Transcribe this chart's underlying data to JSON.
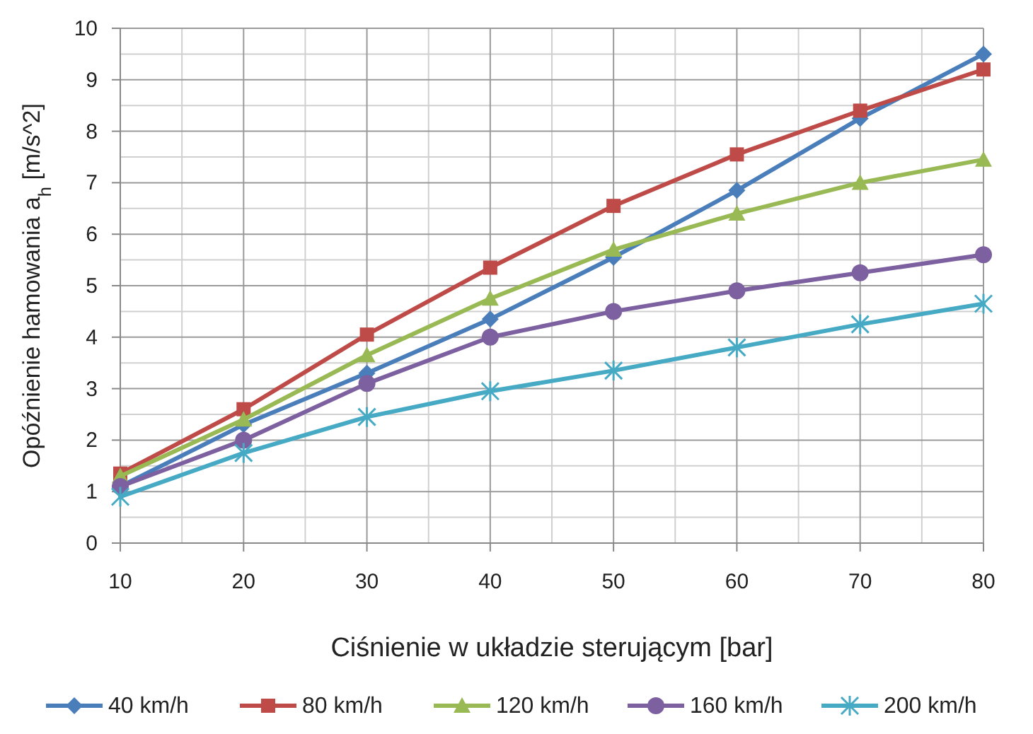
{
  "chart_data": {
    "type": "line",
    "xlabel": "Ciśnienie w układzie sterującym [bar]",
    "ylabel": "Opóźnienie hamowania a$_{h}$  [m/s^2]",
    "x": [
      10,
      20,
      30,
      40,
      50,
      60,
      70,
      80
    ],
    "xlim": [
      10,
      80
    ],
    "xticks": [
      10,
      20,
      30,
      40,
      50,
      60,
      70,
      80
    ],
    "ylim": [
      0,
      10
    ],
    "yticks": [
      0,
      1,
      2,
      3,
      4,
      5,
      6,
      7,
      8,
      9,
      10
    ],
    "grid": true,
    "legend": "bottom",
    "line_style": "solid",
    "series": [
      {
        "name": "40 km/h",
        "color": "#4a7ebb",
        "marker": "diamond",
        "values": [
          1.1,
          2.3,
          3.3,
          4.35,
          5.55,
          6.85,
          8.25,
          9.5
        ]
      },
      {
        "name": "80 km/h",
        "color": "#be4b48",
        "marker": "square",
        "values": [
          1.35,
          2.6,
          4.05,
          5.35,
          6.55,
          7.55,
          8.4,
          9.2
        ]
      },
      {
        "name": "120 km/h",
        "color": "#98b954",
        "marker": "triangle",
        "values": [
          1.3,
          2.4,
          3.65,
          4.75,
          5.7,
          6.4,
          7.0,
          7.45
        ]
      },
      {
        "name": "160 km/h",
        "color": "#7d60a0",
        "marker": "circle",
        "values": [
          1.1,
          2.0,
          3.1,
          4.0,
          4.5,
          4.9,
          5.25,
          5.6
        ]
      },
      {
        "name": "200 km/h",
        "color": "#46aac5",
        "marker": "cross",
        "values": [
          0.9,
          1.75,
          2.45,
          2.95,
          3.35,
          3.8,
          4.25,
          4.65
        ]
      }
    ]
  }
}
